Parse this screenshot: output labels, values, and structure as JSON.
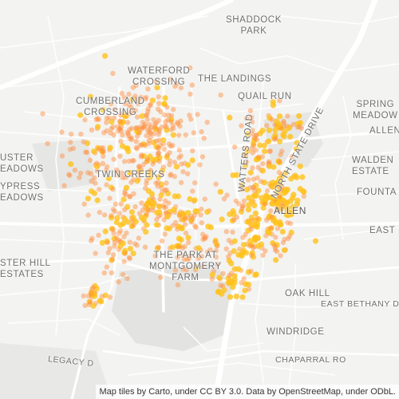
{
  "map": {
    "attribution": "Map tiles by Carto, under CC BY 3.0. Data by OpenStreetMap, under ODbL.",
    "point_color": "#ff8c3a",
    "dense_color": "#ffc21a",
    "labels": {
      "shaddock_park": "SHADDOCK\nPARK",
      "waterford_crossing": "WATERFORD\nCROSSING",
      "the_landings": "THE LANDINGS",
      "quail_run": "QUAIL RUN",
      "spring_meadow": "SPRING\nMEADOW",
      "allen_east": "ALLEN",
      "cumberland_crossing": "CUMBERLAND\nCROSSING",
      "custer_meadows": "USTER\nEADOWS",
      "cypress_meadows": "YPRESS\nEADOWS",
      "walden_estates": "WALDEN\nESTATE",
      "fountain": "FOUNTA",
      "twin_creeks": "TWIN CREEKS",
      "watters_road": "WATTERS ROAD",
      "north_state_drive": "NORTH STATE DRIVE",
      "allen": "ALLEN",
      "east_main": "EAST MA",
      "custer_hill_estates": "STER HILL\nESTATES",
      "the_park_at_montgomery_farm": "THE PARK AT\nMONTGOMERY\nFARM",
      "oak_hill": "OAK HILL",
      "east_bethany": "EAST BETHANY DR",
      "windridge": "WINDRIDGE",
      "legacy_drive": "LEGACY D",
      "chaparral_road": "CHAPARRAL RO"
    }
  }
}
